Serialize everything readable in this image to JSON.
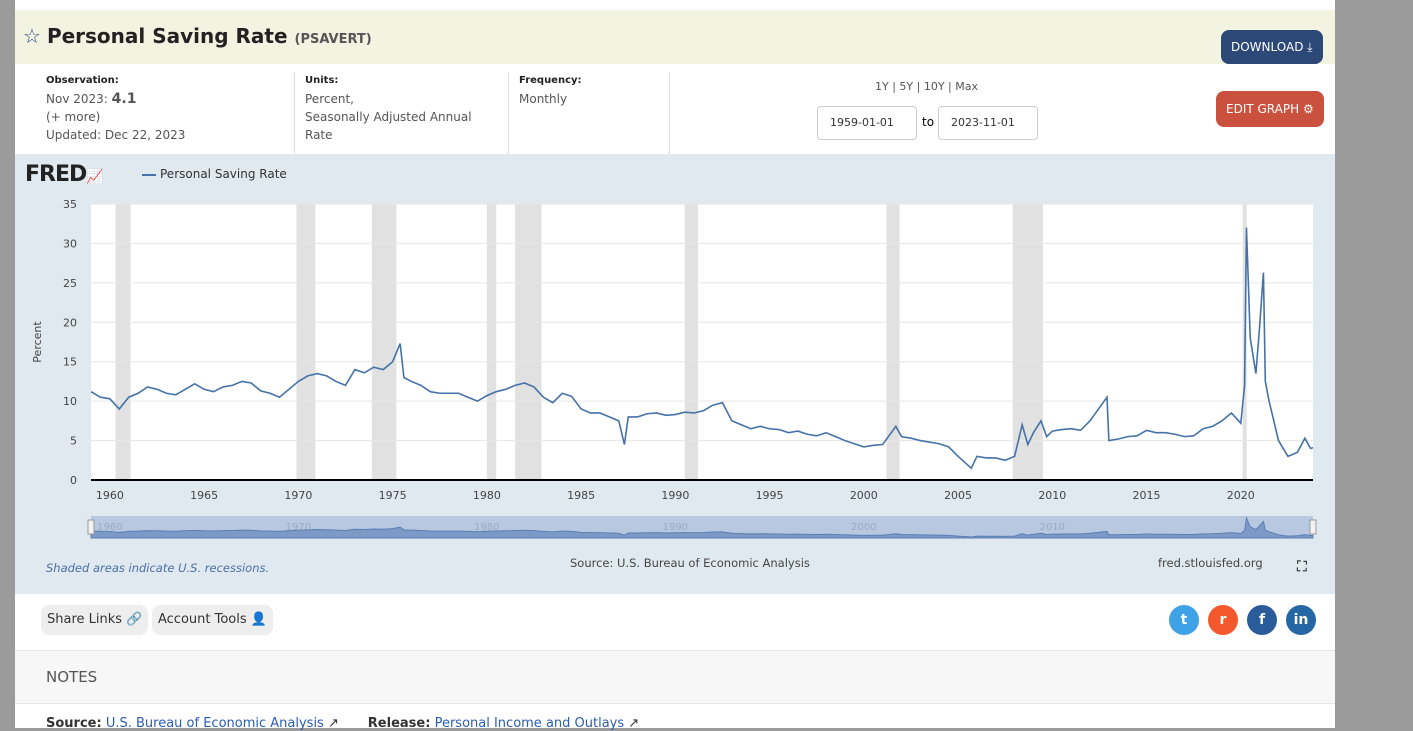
{
  "header": {
    "title": "Personal Saving Rate",
    "series_id": "(PSAVERT)",
    "download": "DOWNLOAD",
    "edit_graph": "EDIT GRAPH"
  },
  "meta": {
    "obs_label": "Observation:",
    "obs_date": "Nov 2023:",
    "obs_value": "4.1",
    "more": "(+ more)",
    "updated": "Updated: Dec 22, 2023",
    "units_label": "Units:",
    "units": "Percent,",
    "units2": "Seasonally Adjusted Annual",
    "units3": "Rate",
    "freq_label": "Frequency:",
    "freq": "Monthly"
  },
  "range": {
    "presets": "1Y | 5Y | 10Y | Max",
    "from": "1959-01-01",
    "to_label": "to",
    "to": "2023-11-01"
  },
  "chart_data": {
    "type": "line",
    "title": "Personal Saving Rate",
    "ylabel": "Percent",
    "ylim": [
      0,
      35
    ],
    "xlim": [
      1959,
      2023.83
    ],
    "yticks": [
      0,
      5,
      10,
      15,
      20,
      25,
      30,
      35
    ],
    "xticks": [
      1960,
      1965,
      1970,
      1975,
      1980,
      1985,
      1990,
      1995,
      2000,
      2005,
      2010,
      2015,
      2020
    ],
    "recessions": [
      [
        1960.3,
        1961.1
      ],
      [
        1969.9,
        1970.9
      ],
      [
        1973.9,
        1975.2
      ],
      [
        1980.0,
        1980.5
      ],
      [
        1981.5,
        1982.9
      ],
      [
        1990.5,
        1991.2
      ],
      [
        2001.2,
        2001.9
      ],
      [
        2007.9,
        2009.5
      ],
      [
        2020.1,
        2020.3
      ]
    ],
    "series": [
      {
        "name": "Personal Saving Rate",
        "color": "#4572a7",
        "points": [
          [
            1959,
            11.2
          ],
          [
            1959.5,
            10.5
          ],
          [
            1960,
            10.3
          ],
          [
            1960.5,
            9
          ],
          [
            1961,
            10.5
          ],
          [
            1961.5,
            11
          ],
          [
            1962,
            11.8
          ],
          [
            1962.5,
            11.5
          ],
          [
            1963,
            11
          ],
          [
            1963.5,
            10.8
          ],
          [
            1964,
            11.5
          ],
          [
            1964.5,
            12.2
          ],
          [
            1965,
            11.5
          ],
          [
            1965.5,
            11.2
          ],
          [
            1966,
            11.8
          ],
          [
            1966.5,
            12
          ],
          [
            1967,
            12.5
          ],
          [
            1967.5,
            12.3
          ],
          [
            1968,
            11.3
          ],
          [
            1968.5,
            11
          ],
          [
            1969,
            10.5
          ],
          [
            1969.5,
            11.5
          ],
          [
            1970,
            12.5
          ],
          [
            1970.5,
            13.2
          ],
          [
            1971,
            13.5
          ],
          [
            1971.5,
            13.2
          ],
          [
            1972,
            12.5
          ],
          [
            1972.5,
            12
          ],
          [
            1973,
            14
          ],
          [
            1973.5,
            13.6
          ],
          [
            1974,
            14.3
          ],
          [
            1974.5,
            14
          ],
          [
            1975,
            15
          ],
          [
            1975.4,
            17.3
          ],
          [
            1975.6,
            13
          ],
          [
            1976,
            12.5
          ],
          [
            1976.5,
            12
          ],
          [
            1977,
            11.2
          ],
          [
            1977.5,
            11
          ],
          [
            1978,
            11
          ],
          [
            1978.5,
            11
          ],
          [
            1979,
            10.5
          ],
          [
            1979.5,
            10
          ],
          [
            1980,
            10.7
          ],
          [
            1980.5,
            11.2
          ],
          [
            1981,
            11.5
          ],
          [
            1981.5,
            12
          ],
          [
            1982,
            12.3
          ],
          [
            1982.5,
            11.8
          ],
          [
            1983,
            10.5
          ],
          [
            1983.5,
            9.8
          ],
          [
            1984,
            11
          ],
          [
            1984.5,
            10.6
          ],
          [
            1985,
            9
          ],
          [
            1985.5,
            8.5
          ],
          [
            1986,
            8.5
          ],
          [
            1986.5,
            8
          ],
          [
            1987,
            7.5
          ],
          [
            1987.3,
            4.5
          ],
          [
            1987.5,
            8
          ],
          [
            1988,
            8
          ],
          [
            1988.5,
            8.4
          ],
          [
            1989,
            8.5
          ],
          [
            1989.5,
            8.2
          ],
          [
            1990,
            8.3
          ],
          [
            1990.5,
            8.6
          ],
          [
            1991,
            8.5
          ],
          [
            1991.5,
            8.8
          ],
          [
            1992,
            9.5
          ],
          [
            1992.5,
            9.8
          ],
          [
            1993,
            7.5
          ],
          [
            1993.5,
            7
          ],
          [
            1994,
            6.5
          ],
          [
            1994.5,
            6.8
          ],
          [
            1995,
            6.5
          ],
          [
            1995.5,
            6.4
          ],
          [
            1996,
            6
          ],
          [
            1996.5,
            6.2
          ],
          [
            1997,
            5.8
          ],
          [
            1997.5,
            5.6
          ],
          [
            1998,
            6
          ],
          [
            1998.5,
            5.5
          ],
          [
            1999,
            5
          ],
          [
            1999.5,
            4.6
          ],
          [
            2000,
            4.2
          ],
          [
            2000.5,
            4.4
          ],
          [
            2001,
            4.5
          ],
          [
            2001.7,
            6.8
          ],
          [
            2002,
            5.5
          ],
          [
            2002.5,
            5.3
          ],
          [
            2003,
            5
          ],
          [
            2003.5,
            4.8
          ],
          [
            2004,
            4.6
          ],
          [
            2004.5,
            4.2
          ],
          [
            2005,
            3
          ],
          [
            2005.7,
            1.5
          ],
          [
            2006,
            3
          ],
          [
            2006.5,
            2.8
          ],
          [
            2007,
            2.8
          ],
          [
            2007.5,
            2.5
          ],
          [
            2008,
            3
          ],
          [
            2008.4,
            7
          ],
          [
            2008.7,
            4.5
          ],
          [
            2009,
            6
          ],
          [
            2009.4,
            7.5
          ],
          [
            2009.7,
            5.5
          ],
          [
            2010,
            6.2
          ],
          [
            2010.5,
            6.4
          ],
          [
            2011,
            6.5
          ],
          [
            2011.5,
            6.3
          ],
          [
            2012,
            7.5
          ],
          [
            2012.9,
            10.5
          ],
          [
            2013,
            5
          ],
          [
            2013.5,
            5.2
          ],
          [
            2014,
            5.5
          ],
          [
            2014.5,
            5.6
          ],
          [
            2015,
            6.3
          ],
          [
            2015.5,
            6
          ],
          [
            2016,
            6
          ],
          [
            2016.5,
            5.8
          ],
          [
            2017,
            5.5
          ],
          [
            2017.5,
            5.6
          ],
          [
            2018,
            6.5
          ],
          [
            2018.5,
            6.8
          ],
          [
            2019,
            7.5
          ],
          [
            2019.5,
            8.5
          ],
          [
            2020,
            7.2
          ],
          [
            2020.2,
            12
          ],
          [
            2020.3,
            32
          ],
          [
            2020.5,
            18
          ],
          [
            2020.8,
            13.5
          ],
          [
            2021,
            19.5
          ],
          [
            2021.2,
            26.3
          ],
          [
            2021.3,
            12.5
          ],
          [
            2021.5,
            10
          ],
          [
            2022,
            5
          ],
          [
            2022.5,
            3
          ],
          [
            2023,
            3.5
          ],
          [
            2023.4,
            5.3
          ],
          [
            2023.7,
            4
          ],
          [
            2023.83,
            4.1
          ]
        ]
      }
    ],
    "legend": "top-left",
    "grid": true
  },
  "chart_footer": {
    "recession_note": "Shaded areas indicate U.S. recessions.",
    "source": "Source: U.S. Bureau of Economic Analysis",
    "site": "fred.stlouisfed.org",
    "navigator_labels": [
      "1960",
      "1970",
      "1980",
      "1990",
      "2000",
      "2010"
    ]
  },
  "logo": "FRED",
  "actions": {
    "share": "Share Links",
    "account": "Account Tools"
  },
  "social": [
    {
      "name": "twitter",
      "color": "#3fa1e6"
    },
    {
      "name": "reddit",
      "color": "#f2582b"
    },
    {
      "name": "facebook",
      "color": "#2a5b9b"
    },
    {
      "name": "linkedin",
      "color": "#2567a5"
    }
  ],
  "notes": {
    "heading": "NOTES",
    "source_label": "Source:",
    "source": "U.S. Bureau of Economic Analysis",
    "release_label": "Release:",
    "release": "Personal Income and Outlays"
  }
}
